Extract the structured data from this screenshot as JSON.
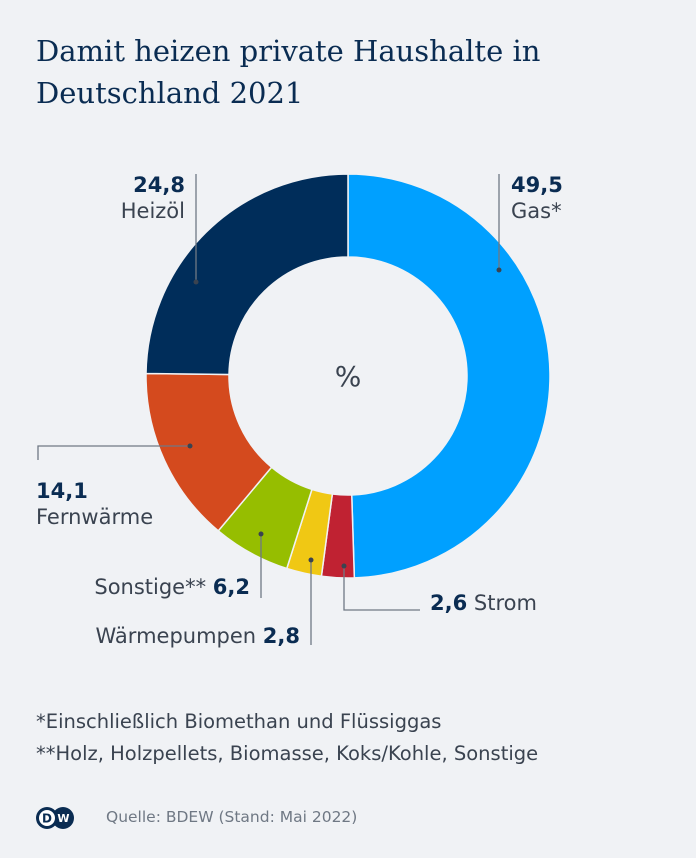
{
  "title": "Damit heizen private Haushalte in Deutschland 2021",
  "chart_data": {
    "type": "pie",
    "variant": "donut",
    "center_label": "%",
    "categories": [
      "Gas*",
      "Strom",
      "Wärmepumpen",
      "Sonstige**",
      "Fernwärme",
      "Heizöl"
    ],
    "values": [
      49.5,
      2.6,
      2.8,
      6.2,
      14.1,
      24.8
    ],
    "value_labels": [
      "49,5",
      "2,6",
      "2,8",
      "6,2",
      "14,1",
      "24,8"
    ],
    "colors": [
      "#00a0ff",
      "#c02232",
      "#f0c814",
      "#96be00",
      "#d44a1e",
      "#002d5a"
    ]
  },
  "footnotes": [
    "*Einschließlich Biomethan und Flüssiggas",
    "**Holz, Holzpellets, Biomasse, Koks/Kohle, Sonstige"
  ],
  "source": "Quelle: BDEW (Stand: Mai 2022)",
  "logo": "DW"
}
